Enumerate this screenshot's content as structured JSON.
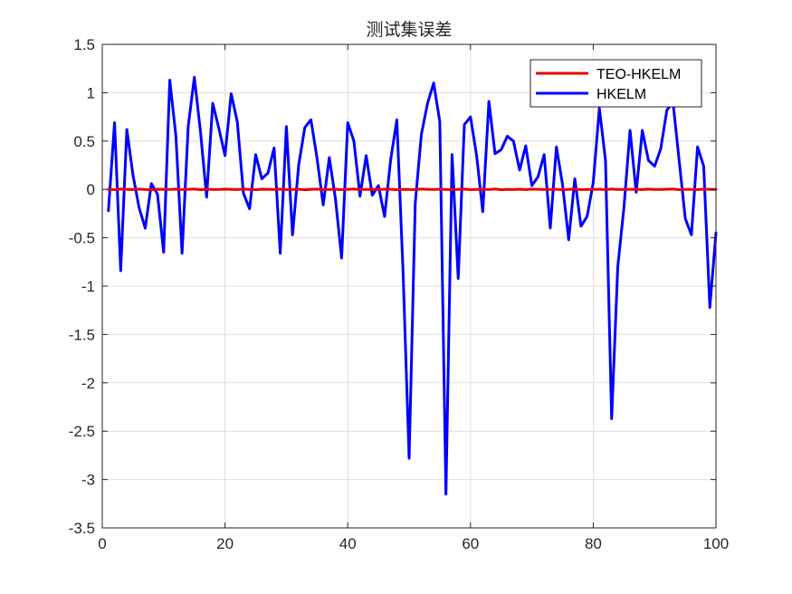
{
  "chart_data": {
    "type": "line",
    "title": "测试集误差",
    "xlabel": "",
    "ylabel": "",
    "xlim": [
      0,
      100
    ],
    "ylim": [
      -3.5,
      1.5
    ],
    "xticks": [
      0,
      20,
      40,
      60,
      80,
      100
    ],
    "xtick_labels": [
      "0",
      "20",
      "40",
      "60",
      "80",
      "100"
    ],
    "yticks": [
      -3.5,
      -3,
      -2.5,
      -2,
      -1.5,
      -1,
      -0.5,
      0,
      0.5,
      1,
      1.5
    ],
    "ytick_labels": [
      "-3.5",
      "-3",
      "-2.5",
      "-2",
      "-1.5",
      "-1",
      "-0.5",
      "0",
      "0.5",
      "1",
      "1.5"
    ],
    "grid": true,
    "legend_position": "top-right",
    "x": [
      1,
      2,
      3,
      4,
      5,
      6,
      7,
      8,
      9,
      10,
      11,
      12,
      13,
      14,
      15,
      16,
      17,
      18,
      19,
      20,
      21,
      22,
      23,
      24,
      25,
      26,
      27,
      28,
      29,
      30,
      31,
      32,
      33,
      34,
      35,
      36,
      37,
      38,
      39,
      40,
      41,
      42,
      43,
      44,
      45,
      46,
      47,
      48,
      49,
      50,
      51,
      52,
      53,
      54,
      55,
      56,
      57,
      58,
      59,
      60,
      61,
      62,
      63,
      64,
      65,
      66,
      67,
      68,
      69,
      70,
      71,
      72,
      73,
      74,
      75,
      76,
      77,
      78,
      79,
      80,
      81,
      82,
      83,
      84,
      85,
      86,
      87,
      88,
      89,
      90,
      91,
      92,
      93,
      94,
      95,
      96,
      97,
      98,
      99,
      100
    ],
    "series": [
      {
        "name": "TEO-HKELM",
        "color": "#e60000",
        "values": [
          0.002,
          -0.003,
          0.004,
          0.001,
          -0.002,
          0.003,
          0.0,
          -0.004,
          0.002,
          0.001,
          -0.001,
          0.003,
          -0.002,
          0.001,
          0.004,
          -0.003,
          0.002,
          0.0,
          -0.001,
          0.003,
          0.001,
          -0.002,
          0.004,
          0.0,
          -0.003,
          0.002,
          0.001,
          -0.001,
          0.003,
          -0.002,
          0.0,
          0.002,
          -0.004,
          0.001,
          0.003,
          -0.001,
          0.0,
          0.002,
          -0.003,
          0.001,
          0.004,
          -0.002,
          0.001,
          0.0,
          -0.001,
          0.003,
          0.002,
          -0.003,
          0.001,
          0.0,
          -0.002,
          0.004,
          0.001,
          -0.001,
          0.002,
          0.0,
          -0.003,
          0.001,
          0.003,
          -0.002,
          0.0,
          0.002,
          -0.001,
          0.004,
          -0.003,
          0.001,
          0.0,
          0.002,
          -0.002,
          0.003,
          0.001,
          -0.001,
          0.0,
          0.002,
          -0.004,
          0.001,
          0.003,
          -0.002,
          0.0,
          0.001,
          0.002,
          -0.003,
          0.004,
          0.0,
          -0.001,
          0.002,
          0.001,
          -0.002,
          0.003,
          0.0,
          -0.001,
          0.002,
          0.004,
          -0.003,
          0.001,
          0.0,
          -0.002,
          0.003,
          0.001,
          0.0
        ]
      },
      {
        "name": "HKELM",
        "color": "#0000ff",
        "values": [
          -0.22,
          0.69,
          -0.84,
          0.62,
          0.15,
          -0.19,
          -0.4,
          0.06,
          -0.05,
          -0.65,
          1.13,
          0.55,
          -0.66,
          0.65,
          1.16,
          0.6,
          -0.08,
          0.89,
          0.63,
          0.35,
          0.99,
          0.7,
          -0.04,
          -0.2,
          0.36,
          0.11,
          0.17,
          0.43,
          -0.66,
          0.65,
          -0.47,
          0.25,
          0.64,
          0.72,
          0.32,
          -0.16,
          0.33,
          -0.1,
          -0.71,
          0.69,
          0.5,
          -0.07,
          0.35,
          -0.06,
          0.04,
          -0.28,
          0.31,
          0.72,
          -0.83,
          -2.78,
          -0.14,
          0.57,
          0.89,
          1.1,
          0.7,
          -3.15,
          0.36,
          -0.92,
          0.67,
          0.75,
          0.35,
          -0.23,
          0.91,
          0.37,
          0.41,
          0.55,
          0.5,
          0.2,
          0.45,
          0.04,
          0.13,
          0.36,
          -0.4,
          0.44,
          0.05,
          -0.52,
          0.11,
          -0.38,
          -0.28,
          0.07,
          0.84,
          0.3,
          -2.37,
          -0.8,
          -0.19,
          0.61,
          -0.03,
          0.61,
          0.3,
          0.24,
          0.42,
          0.82,
          0.9,
          0.3,
          -0.3,
          -0.47,
          0.44,
          0.24,
          -1.22,
          -0.45
        ]
      }
    ]
  }
}
